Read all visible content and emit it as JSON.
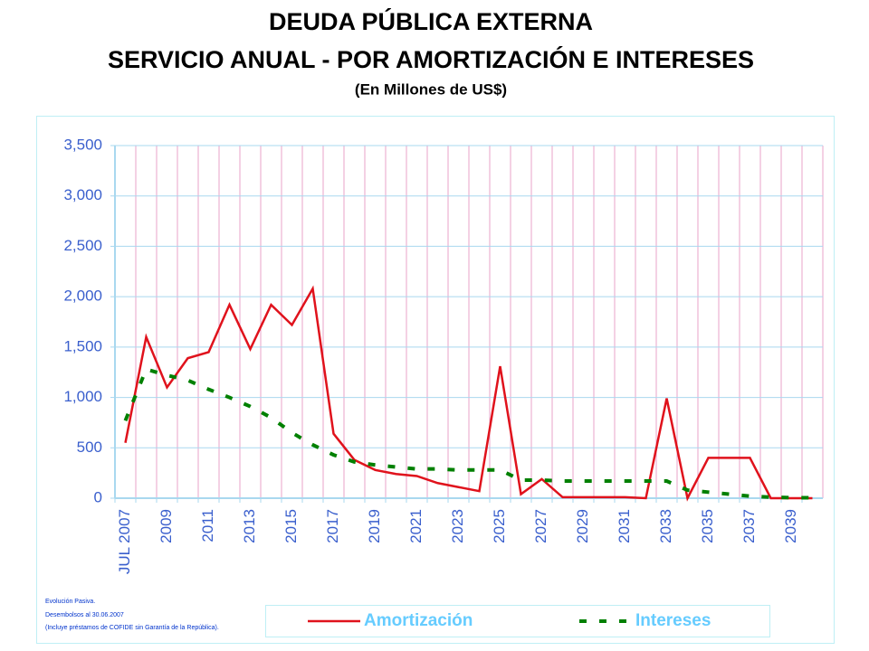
{
  "chart_data": {
    "type": "line",
    "title_lines": [
      "DEUDA PÚBLICA EXTERNA",
      "SERVICIO ANUAL - POR AMORTIZACIÓN E INTERESES",
      "(En Millones de US$)"
    ],
    "categories": [
      "JUL 2007",
      null,
      "2009",
      null,
      "2011",
      null,
      "2013",
      null,
      "2015",
      null,
      "2017",
      null,
      "2019",
      null,
      "2021",
      null,
      "2023",
      null,
      "2025",
      null,
      "2027",
      null,
      "2029",
      null,
      "2031",
      null,
      "2033",
      null,
      "2035",
      null,
      "2037",
      null,
      "2039",
      null
    ],
    "series": [
      {
        "name": "Amortización",
        "color": "#e0121c",
        "style": "solid",
        "values": [
          550,
          1600,
          1100,
          1390,
          1450,
          1920,
          1480,
          1920,
          1720,
          2080,
          640,
          380,
          280,
          240,
          220,
          150,
          110,
          70,
          1310,
          40,
          190,
          10,
          10,
          10,
          10,
          0,
          990,
          0,
          400,
          400,
          400,
          0,
          0,
          0
        ]
      },
      {
        "name": "Intereses",
        "color": "#008000",
        "style": "dashed",
        "values": [
          770,
          1280,
          1220,
          1170,
          1080,
          1000,
          910,
          800,
          650,
          530,
          430,
          360,
          330,
          310,
          290,
          290,
          280,
          280,
          280,
          180,
          180,
          170,
          170,
          170,
          170,
          170,
          170,
          80,
          60,
          40,
          20,
          10,
          5,
          5
        ]
      }
    ],
    "ylim": [
      0,
      3500
    ],
    "yticks": [
      0,
      500,
      {
        "value": 1000,
        "label": "1,000"
      },
      {
        "value": 1500,
        "label": "1,500"
      },
      {
        "value": 2000,
        "label": "2,000"
      },
      {
        "value": 2500,
        "label": "2,500"
      },
      {
        "value": 3000,
        "label": "3,000"
      },
      {
        "value": 3500,
        "label": "3,500"
      }
    ],
    "grid": true,
    "footnotes": [
      "Evolución Pasiva.",
      "Desembolsos al 30.06.2007",
      "(Incluye préstamos de COFIDE sin Garantía de la República)."
    ]
  }
}
